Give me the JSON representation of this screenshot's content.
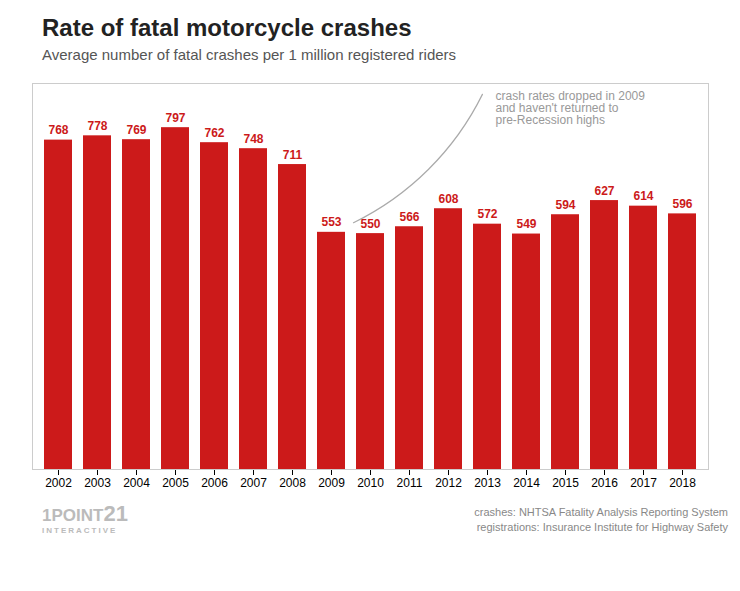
{
  "chart_data": {
    "type": "bar",
    "title": "Rate of fatal motorcycle crashes",
    "subtitle": "Average number of fatal crashes per 1 million registered riders",
    "categories": [
      "2002",
      "2003",
      "2004",
      "2005",
      "2006",
      "2007",
      "2008",
      "2009",
      "2010",
      "2011",
      "2012",
      "2013",
      "2014",
      "2015",
      "2016",
      "2017",
      "2018"
    ],
    "values": [
      768,
      778,
      769,
      797,
      762,
      748,
      711,
      553,
      550,
      566,
      608,
      572,
      549,
      594,
      627,
      614,
      596
    ],
    "color": "#cc1a1a",
    "ylim": [
      0,
      900
    ],
    "yticks": [],
    "grid": false,
    "data_labels": true,
    "tick_labels": "x",
    "annotation": "crash rates dropped in 2009\nand haven't returned to\npre-Recession highs",
    "sources": [
      "crashes: NHTSA Fatality Analysis Reporting System",
      "registrations: Insurance Institute for Highway Safety"
    ],
    "logo": [
      "1POINT",
      "21",
      "INTERACTIVE"
    ]
  }
}
